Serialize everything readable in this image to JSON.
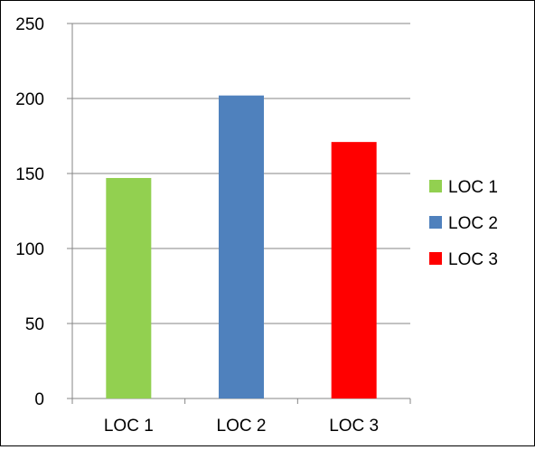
{
  "chart_data": {
    "type": "bar",
    "categories": [
      "LOC 1",
      "LOC 2",
      "LOC 3"
    ],
    "values": [
      147,
      202,
      171
    ],
    "colors": [
      "#92d050",
      "#4f81bd",
      "#ff0000"
    ],
    "ylim": [
      0,
      250
    ],
    "yticks": [
      "0",
      "50",
      "100",
      "150",
      "200",
      "250"
    ],
    "grid": true,
    "legend": {
      "position": "right",
      "entries": [
        "LOC 1",
        "LOC 2",
        "LOC 3"
      ]
    }
  }
}
